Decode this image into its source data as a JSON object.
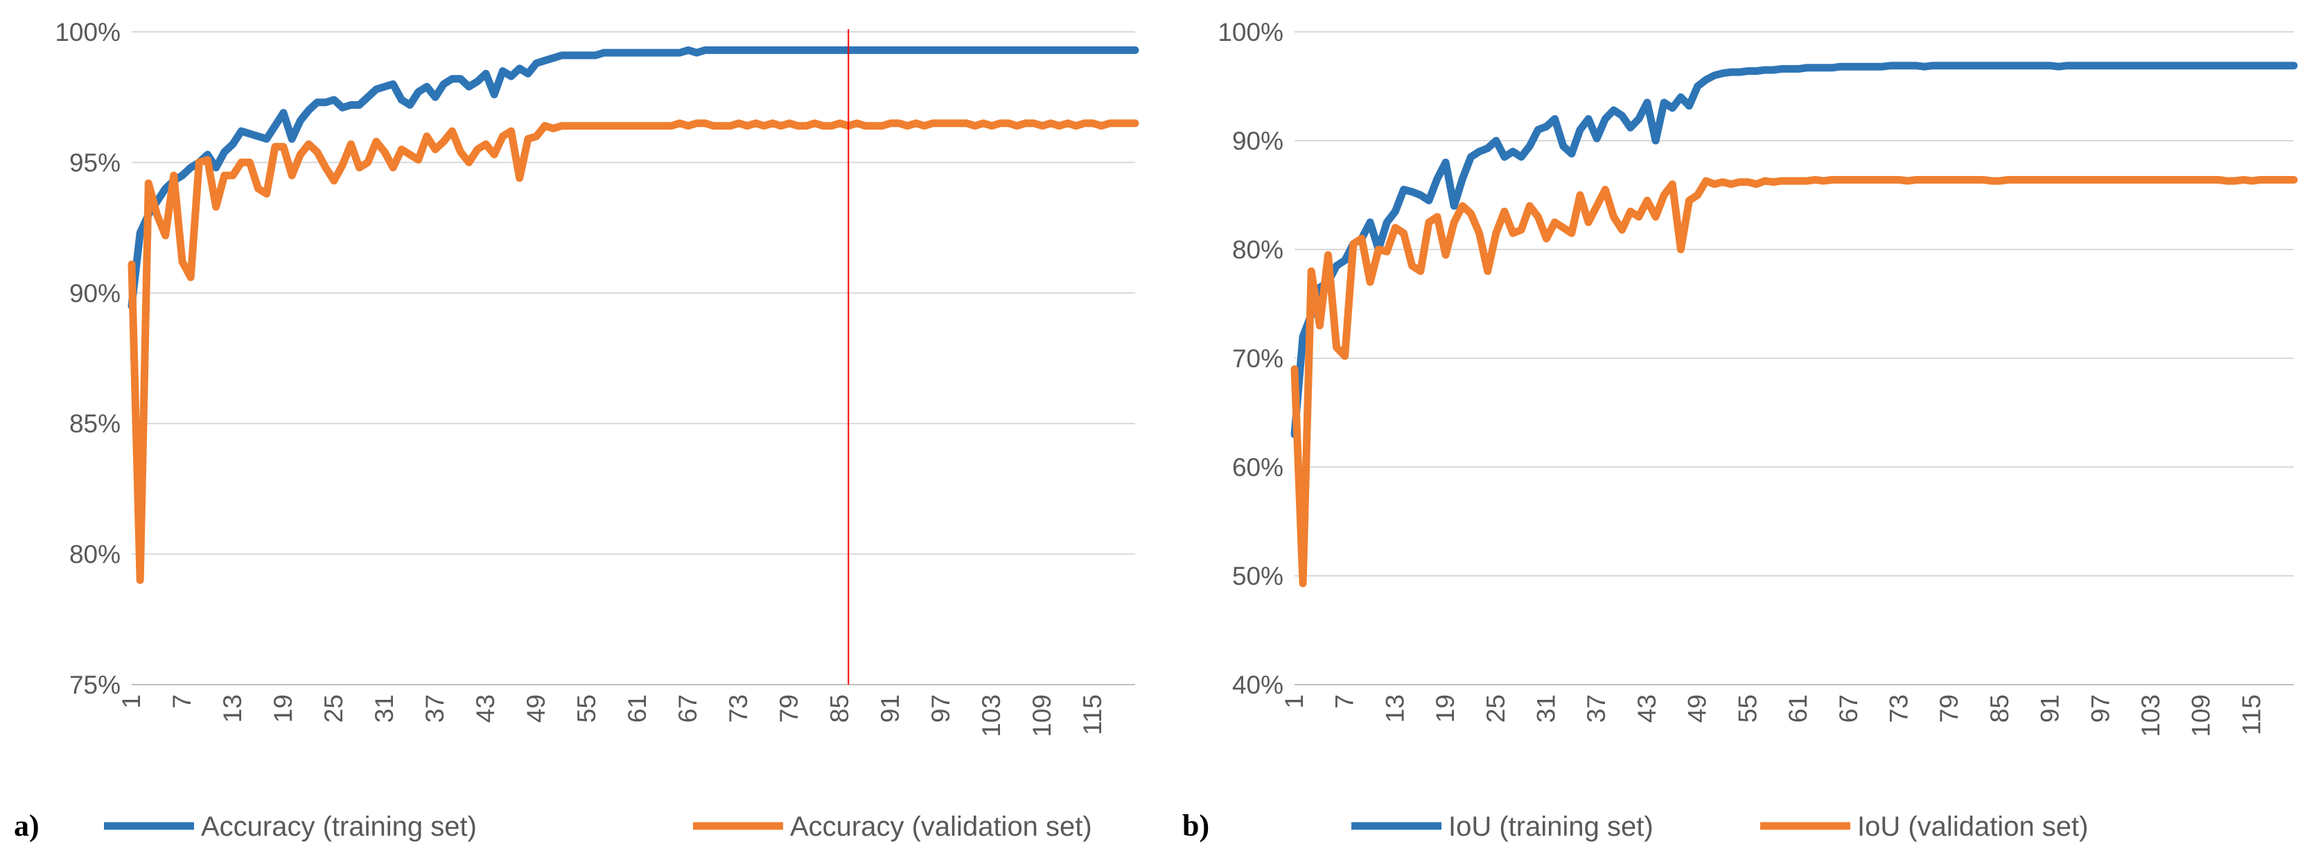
{
  "chart_data": [
    {
      "type": "line",
      "panel_label": "a)",
      "title": "",
      "xlabel": "",
      "ylabel": "",
      "ylim": [
        75,
        100
      ],
      "ytick_values": [
        75,
        80,
        85,
        90,
        95,
        100
      ],
      "ytick_labels": [
        "75%",
        "80%",
        "85%",
        "90%",
        "95%",
        "100%"
      ],
      "xlim": [
        1,
        120
      ],
      "xtick_values": [
        1,
        7,
        13,
        19,
        25,
        31,
        37,
        43,
        49,
        55,
        61,
        67,
        73,
        79,
        85,
        91,
        97,
        103,
        109,
        115
      ],
      "xtick_labels": [
        "1",
        "7",
        "13",
        "19",
        "25",
        "31",
        "37",
        "43",
        "49",
        "55",
        "61",
        "67",
        "73",
        "79",
        "85",
        "91",
        "97",
        "103",
        "109",
        "115"
      ],
      "grid": "horizontal",
      "legend_position": "bottom",
      "marker_line_x": 86,
      "colors": {
        "marker": "#ff0000"
      },
      "series": [
        {
          "name": "Accuracy (training set)",
          "color": "#2e75b6",
          "values": [
            89.5,
            92.3,
            93.0,
            93.5,
            94.0,
            94.3,
            94.5,
            94.8,
            95.0,
            95.3,
            94.8,
            95.4,
            95.7,
            96.2,
            96.1,
            96.0,
            95.9,
            96.4,
            96.9,
            95.9,
            96.6,
            97.0,
            97.3,
            97.3,
            97.4,
            97.1,
            97.2,
            97.2,
            97.5,
            97.8,
            97.9,
            98.0,
            97.4,
            97.2,
            97.7,
            97.9,
            97.5,
            98.0,
            98.2,
            98.2,
            97.9,
            98.1,
            98.4,
            97.6,
            98.5,
            98.3,
            98.6,
            98.4,
            98.8,
            98.9,
            99.0,
            99.1,
            99.1,
            99.1,
            99.1,
            99.1,
            99.2,
            99.2,
            99.2,
            99.2,
            99.2,
            99.2,
            99.2,
            99.2,
            99.2,
            99.2,
            99.3,
            99.2,
            99.3,
            99.3,
            99.3,
            99.3,
            99.3,
            99.3,
            99.3,
            99.3,
            99.3,
            99.3,
            99.3,
            99.3,
            99.3,
            99.3,
            99.3,
            99.3,
            99.3,
            99.3,
            99.3,
            99.3,
            99.3,
            99.3,
            99.3,
            99.3,
            99.3,
            99.3,
            99.3,
            99.3,
            99.3,
            99.3,
            99.3,
            99.3,
            99.3,
            99.3,
            99.3,
            99.3,
            99.3,
            99.3,
            99.3,
            99.3,
            99.3,
            99.3,
            99.3,
            99.3,
            99.3,
            99.3,
            99.3,
            99.3,
            99.3,
            99.3,
            99.3,
            99.3
          ]
        },
        {
          "name": "Accuracy (validation set)",
          "color": "#f07f2f",
          "values": [
            91.1,
            79.0,
            94.2,
            93.0,
            92.2,
            94.5,
            91.2,
            90.6,
            95.0,
            95.1,
            93.3,
            94.5,
            94.5,
            95.0,
            95.0,
            94.0,
            93.8,
            95.6,
            95.6,
            94.5,
            95.3,
            95.7,
            95.4,
            94.8,
            94.3,
            94.9,
            95.7,
            94.8,
            95.0,
            95.8,
            95.4,
            94.8,
            95.5,
            95.3,
            95.1,
            96.0,
            95.5,
            95.8,
            96.2,
            95.4,
            95.0,
            95.5,
            95.7,
            95.3,
            96.0,
            96.2,
            94.4,
            95.9,
            96.0,
            96.4,
            96.3,
            96.4,
            96.4,
            96.4,
            96.4,
            96.4,
            96.4,
            96.4,
            96.4,
            96.4,
            96.4,
            96.4,
            96.4,
            96.4,
            96.4,
            96.5,
            96.4,
            96.5,
            96.5,
            96.4,
            96.4,
            96.4,
            96.5,
            96.4,
            96.5,
            96.4,
            96.5,
            96.4,
            96.5,
            96.4,
            96.4,
            96.5,
            96.4,
            96.4,
            96.5,
            96.4,
            96.5,
            96.4,
            96.4,
            96.4,
            96.5,
            96.5,
            96.4,
            96.5,
            96.4,
            96.5,
            96.5,
            96.5,
            96.5,
            96.5,
            96.4,
            96.5,
            96.4,
            96.5,
            96.5,
            96.4,
            96.5,
            96.5,
            96.4,
            96.5,
            96.4,
            96.5,
            96.4,
            96.5,
            96.5,
            96.4,
            96.5,
            96.5,
            96.5,
            96.5
          ]
        }
      ]
    },
    {
      "type": "line",
      "panel_label": "b)",
      "title": "",
      "xlabel": "",
      "ylabel": "",
      "ylim": [
        40,
        100
      ],
      "ytick_values": [
        40,
        50,
        60,
        70,
        80,
        90,
        100
      ],
      "ytick_labels": [
        "40%",
        "50%",
        "60%",
        "70%",
        "80%",
        "90%",
        "100%"
      ],
      "xlim": [
        1,
        120
      ],
      "xtick_values": [
        1,
        7,
        13,
        19,
        25,
        31,
        37,
        43,
        49,
        55,
        61,
        67,
        73,
        79,
        85,
        91,
        97,
        103,
        109,
        115
      ],
      "xtick_labels": [
        "1",
        "7",
        "13",
        "19",
        "25",
        "31",
        "37",
        "43",
        "49",
        "55",
        "61",
        "67",
        "73",
        "79",
        "85",
        "91",
        "97",
        "103",
        "109",
        "115"
      ],
      "grid": "horizontal",
      "legend_position": "bottom",
      "series": [
        {
          "name": "IoU (training set)",
          "color": "#2e75b6",
          "values": [
            63.0,
            72.0,
            74.0,
            76.5,
            77.0,
            78.5,
            79.0,
            80.5,
            81.0,
            82.5,
            80.0,
            82.5,
            83.5,
            85.5,
            85.3,
            85.0,
            84.5,
            86.5,
            88.0,
            84.0,
            86.5,
            88.5,
            89.0,
            89.3,
            90.0,
            88.5,
            89.0,
            88.5,
            89.5,
            91.0,
            91.3,
            92.0,
            89.5,
            88.8,
            91.0,
            92.0,
            90.2,
            92.0,
            92.8,
            92.3,
            91.2,
            92.0,
            93.5,
            90.0,
            93.5,
            93.0,
            94.0,
            93.2,
            95.0,
            95.6,
            96.0,
            96.2,
            96.3,
            96.3,
            96.4,
            96.4,
            96.5,
            96.5,
            96.6,
            96.6,
            96.6,
            96.7,
            96.7,
            96.7,
            96.7,
            96.8,
            96.8,
            96.8,
            96.8,
            96.8,
            96.8,
            96.9,
            96.9,
            96.9,
            96.9,
            96.8,
            96.9,
            96.9,
            96.9,
            96.9,
            96.9,
            96.9,
            96.9,
            96.9,
            96.9,
            96.9,
            96.9,
            96.9,
            96.9,
            96.9,
            96.9,
            96.8,
            96.9,
            96.9,
            96.9,
            96.9,
            96.9,
            96.9,
            96.9,
            96.9,
            96.9,
            96.9,
            96.9,
            96.9,
            96.9,
            96.9,
            96.9,
            96.9,
            96.9,
            96.9,
            96.9,
            96.9,
            96.9,
            96.9,
            96.9,
            96.9,
            96.9,
            96.9,
            96.9,
            96.9
          ]
        },
        {
          "name": "IoU (validation set)",
          "color": "#f07f2f",
          "values": [
            69.0,
            49.3,
            78.0,
            73.0,
            79.5,
            71.0,
            70.2,
            80.5,
            81.0,
            77.0,
            80.0,
            79.8,
            82.0,
            81.5,
            78.5,
            78.0,
            82.5,
            83.0,
            79.5,
            82.5,
            84.0,
            83.3,
            81.5,
            78.0,
            81.5,
            83.5,
            81.5,
            81.8,
            84.0,
            83.0,
            81.0,
            82.5,
            82.0,
            81.5,
            85.0,
            82.5,
            84.0,
            85.5,
            83.0,
            81.8,
            83.5,
            83.0,
            84.5,
            83.0,
            85.0,
            86.0,
            80.0,
            84.5,
            85.0,
            86.3,
            86.0,
            86.2,
            86.0,
            86.2,
            86.2,
            86.0,
            86.3,
            86.2,
            86.3,
            86.3,
            86.3,
            86.3,
            86.4,
            86.3,
            86.4,
            86.4,
            86.4,
            86.4,
            86.4,
            86.4,
            86.4,
            86.4,
            86.4,
            86.3,
            86.4,
            86.4,
            86.4,
            86.4,
            86.4,
            86.4,
            86.4,
            86.4,
            86.4,
            86.3,
            86.3,
            86.4,
            86.4,
            86.4,
            86.4,
            86.4,
            86.4,
            86.4,
            86.4,
            86.4,
            86.4,
            86.4,
            86.4,
            86.4,
            86.4,
            86.4,
            86.4,
            86.4,
            86.4,
            86.4,
            86.4,
            86.4,
            86.4,
            86.4,
            86.4,
            86.4,
            86.4,
            86.3,
            86.3,
            86.4,
            86.3,
            86.4,
            86.4,
            86.4,
            86.4,
            86.4
          ]
        }
      ]
    }
  ]
}
